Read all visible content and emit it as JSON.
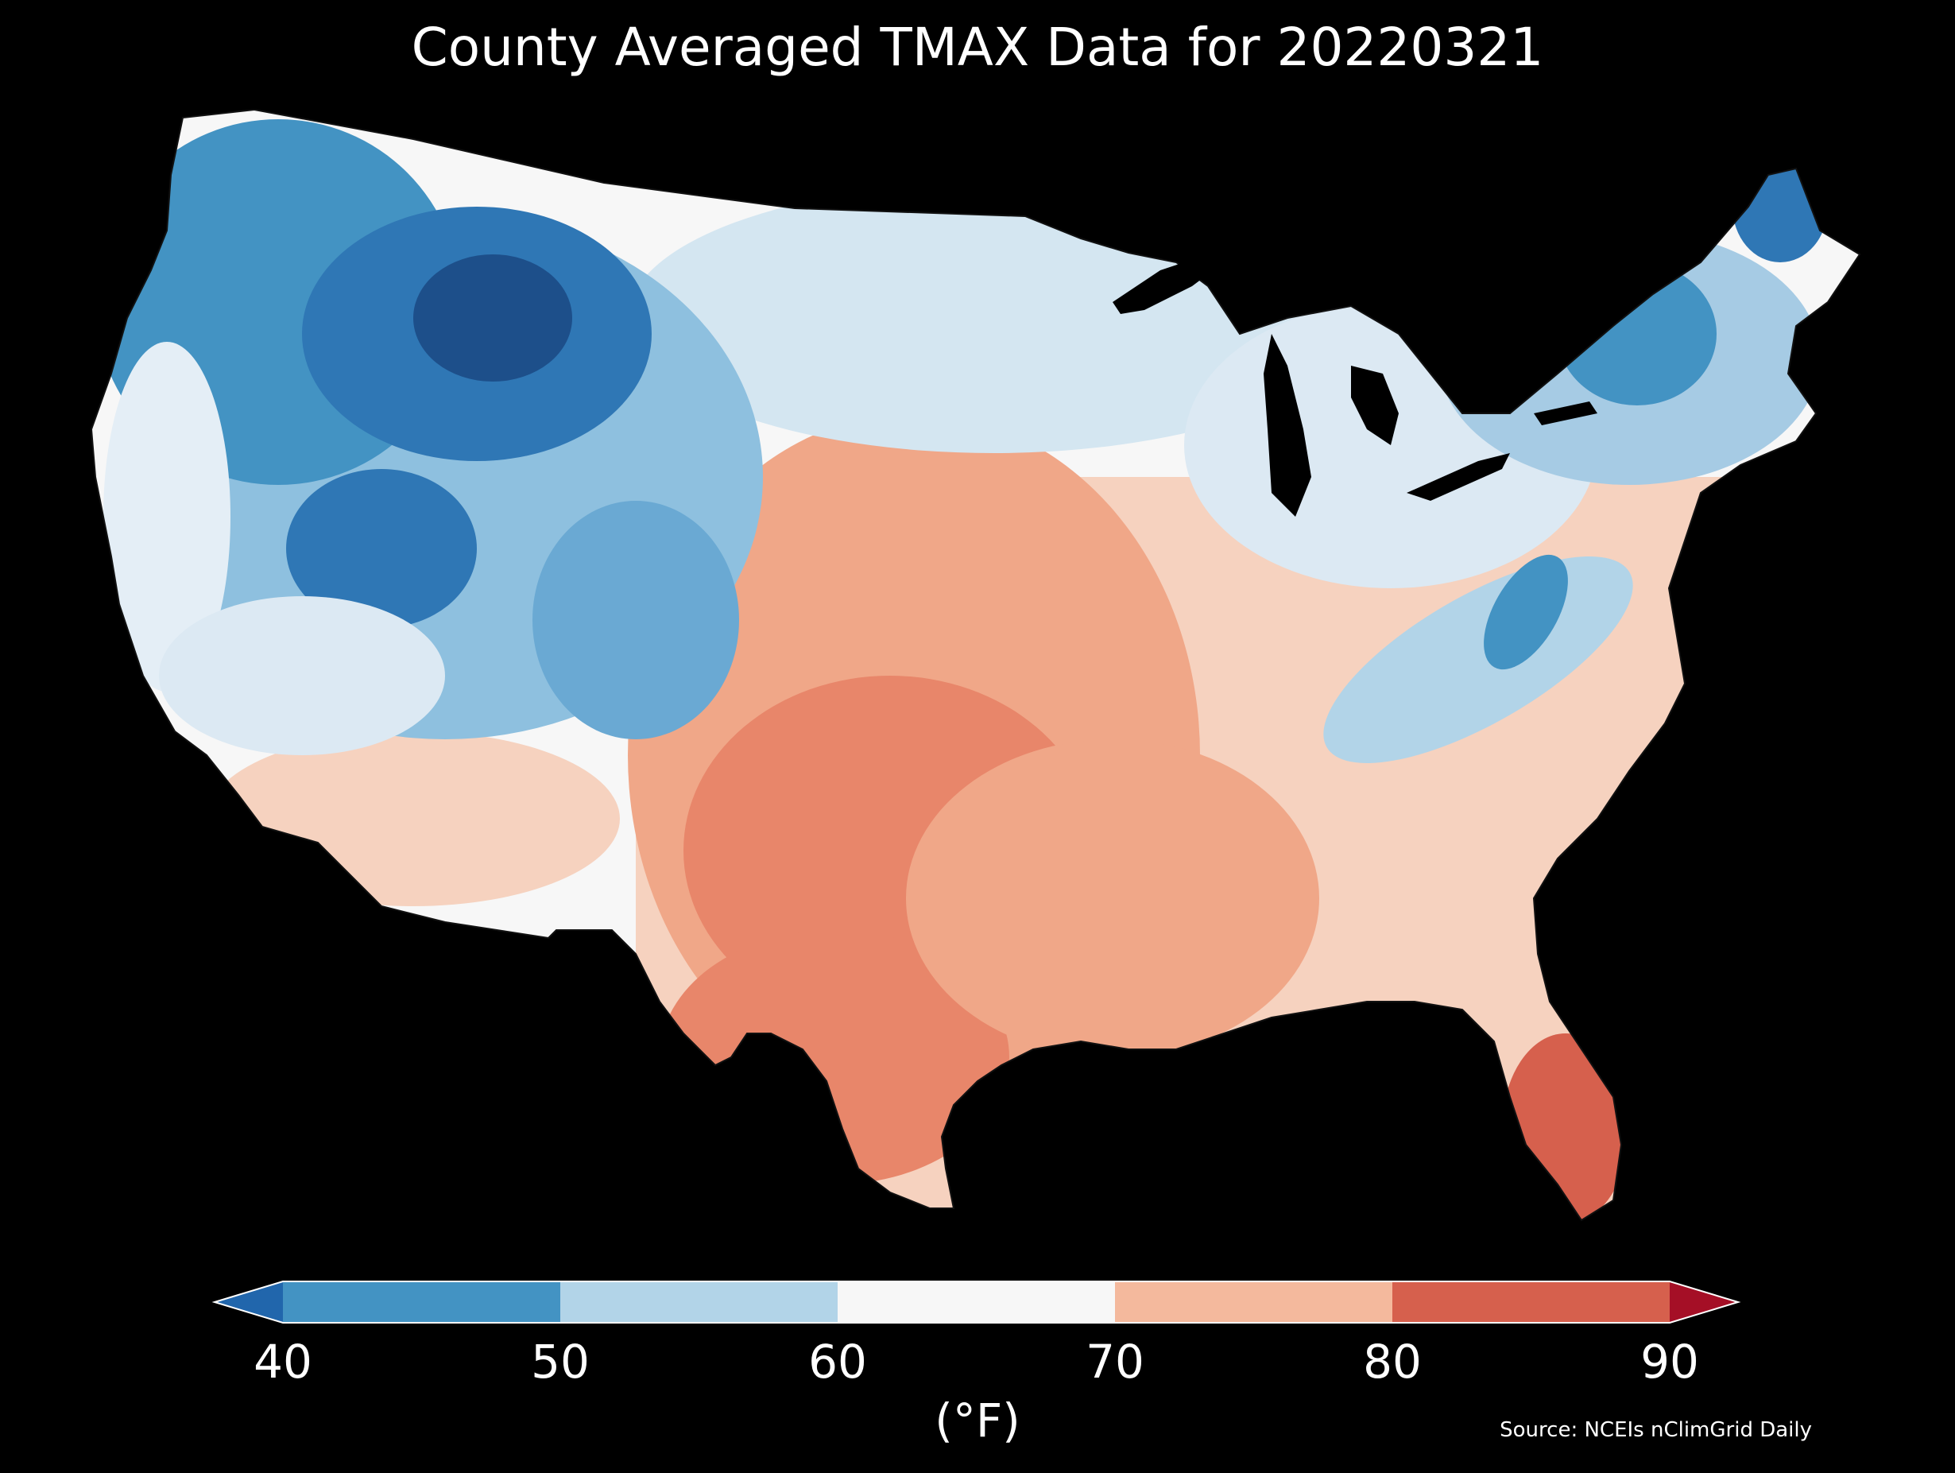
{
  "title": "County Averaged TMAX Data for 20220321",
  "colorbar": {
    "units_label": "(°F)",
    "ticks": [
      "40",
      "50",
      "60",
      "70",
      "80",
      "90"
    ],
    "segments": [
      {
        "range": "<40",
        "color": "#2166ac"
      },
      {
        "range": "40-50",
        "color": "#4393c3"
      },
      {
        "range": "50-60",
        "color": "#b2d4e8"
      },
      {
        "range": "60-70",
        "color": "#f7f7f7"
      },
      {
        "range": "70-80",
        "color": "#f4b99d"
      },
      {
        "range": "80-90",
        "color": "#d6604d"
      },
      {
        "range": ">90",
        "color": "#a50f26"
      }
    ]
  },
  "source": "Source: NCEIs nClimGrid Daily",
  "map": {
    "region": "Contiguous United States",
    "variable": "TMAX",
    "date": "20220321",
    "summary_regions": [
      {
        "region": "northern-rockies",
        "approx_f": 38
      },
      {
        "region": "pacific-northwest",
        "approx_f": 44
      },
      {
        "region": "great-basin",
        "approx_f": 48
      },
      {
        "region": "california-coast",
        "approx_f": 60
      },
      {
        "region": "desert-southwest",
        "approx_f": 72
      },
      {
        "region": "northern-plains",
        "approx_f": 56
      },
      {
        "region": "great-lakes",
        "approx_f": 58
      },
      {
        "region": "central-plains",
        "approx_f": 76
      },
      {
        "region": "southern-plains",
        "approx_f": 80
      },
      {
        "region": "south-texas",
        "approx_f": 82
      },
      {
        "region": "lower-mississippi",
        "approx_f": 74
      },
      {
        "region": "southeast",
        "approx_f": 70
      },
      {
        "region": "appalachians",
        "approx_f": 50
      },
      {
        "region": "mid-atlantic",
        "approx_f": 58
      },
      {
        "region": "northeast",
        "approx_f": 50
      },
      {
        "region": "northern-maine",
        "approx_f": 42
      },
      {
        "region": "florida-south",
        "approx_f": 86
      }
    ]
  }
}
